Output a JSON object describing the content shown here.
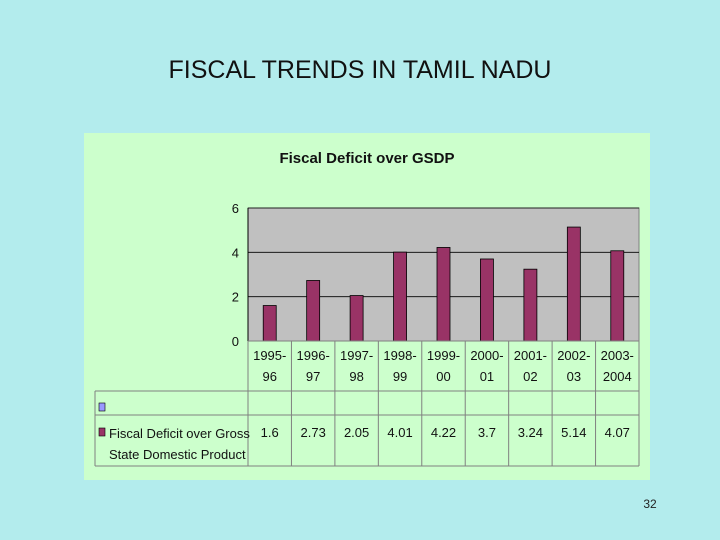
{
  "slide": {
    "title": "FISCAL TRENDS IN TAMIL NADU",
    "page_number": "32"
  },
  "colors": {
    "background": "#b3eced",
    "chart_area": "#ccffcc",
    "plot_area": "#c0c0c0",
    "bar": "#993366",
    "empty_series": "#9999ff"
  },
  "chart_data": {
    "type": "bar",
    "title": "Fiscal Deficit over GSDP",
    "categories": [
      [
        "1995-",
        "96"
      ],
      [
        "1996-",
        "97"
      ],
      [
        "1997-",
        "98"
      ],
      [
        "1998-",
        "99"
      ],
      [
        "1999-",
        "00"
      ],
      [
        "2000-",
        "01"
      ],
      [
        "2001-",
        "02"
      ],
      [
        "2002-",
        "03"
      ],
      [
        "2003-",
        "2004"
      ]
    ],
    "series": [
      {
        "name_lines": [
          "Fiscal Deficit over Gross",
          "State Domestic Product"
        ],
        "values": [
          1.6,
          2.73,
          2.05,
          4.01,
          4.22,
          3.7,
          3.24,
          5.14,
          4.07
        ],
        "value_labels": [
          "1.6",
          "2.73",
          "2.05",
          "4.01",
          "4.22",
          "3.7",
          "3.24",
          "5.14",
          "4.07"
        ]
      }
    ],
    "ylim": [
      0,
      6
    ],
    "yticks": [
      "0",
      "2",
      "4",
      "6"
    ],
    "xlabel": "",
    "ylabel": "",
    "grid": true,
    "legend": "data table below chart"
  }
}
